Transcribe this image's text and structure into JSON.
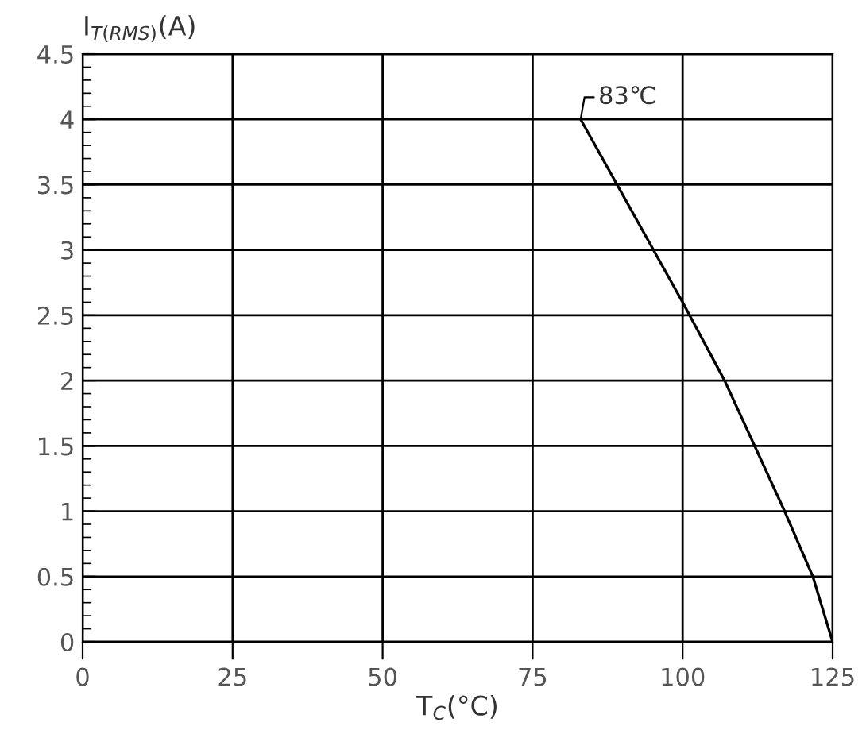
{
  "chart_data": {
    "type": "line",
    "xlabel": "T$_{C}$(°C)",
    "ylabel": "I$_{T(RMS)}$(A)",
    "x": [
      83,
      100,
      107,
      117,
      121.7,
      125
    ],
    "series": [
      {
        "color": "#000000",
        "values": [
          4,
          2.6,
          2.0,
          1.0,
          0.5,
          0
        ]
      }
    ],
    "xlim": [
      0,
      125
    ],
    "xticks": [
      0,
      25,
      50,
      75,
      100,
      125
    ],
    "ylim": [
      0,
      4.5
    ],
    "yticks": [
      0,
      0.5,
      1,
      1.5,
      2,
      2.5,
      3,
      3.5,
      4,
      4.5
    ],
    "grid": true,
    "marker": "none",
    "line_style": "solid",
    "annotations": [
      {
        "text": "83℃",
        "x": 83,
        "y": 4
      }
    ]
  }
}
